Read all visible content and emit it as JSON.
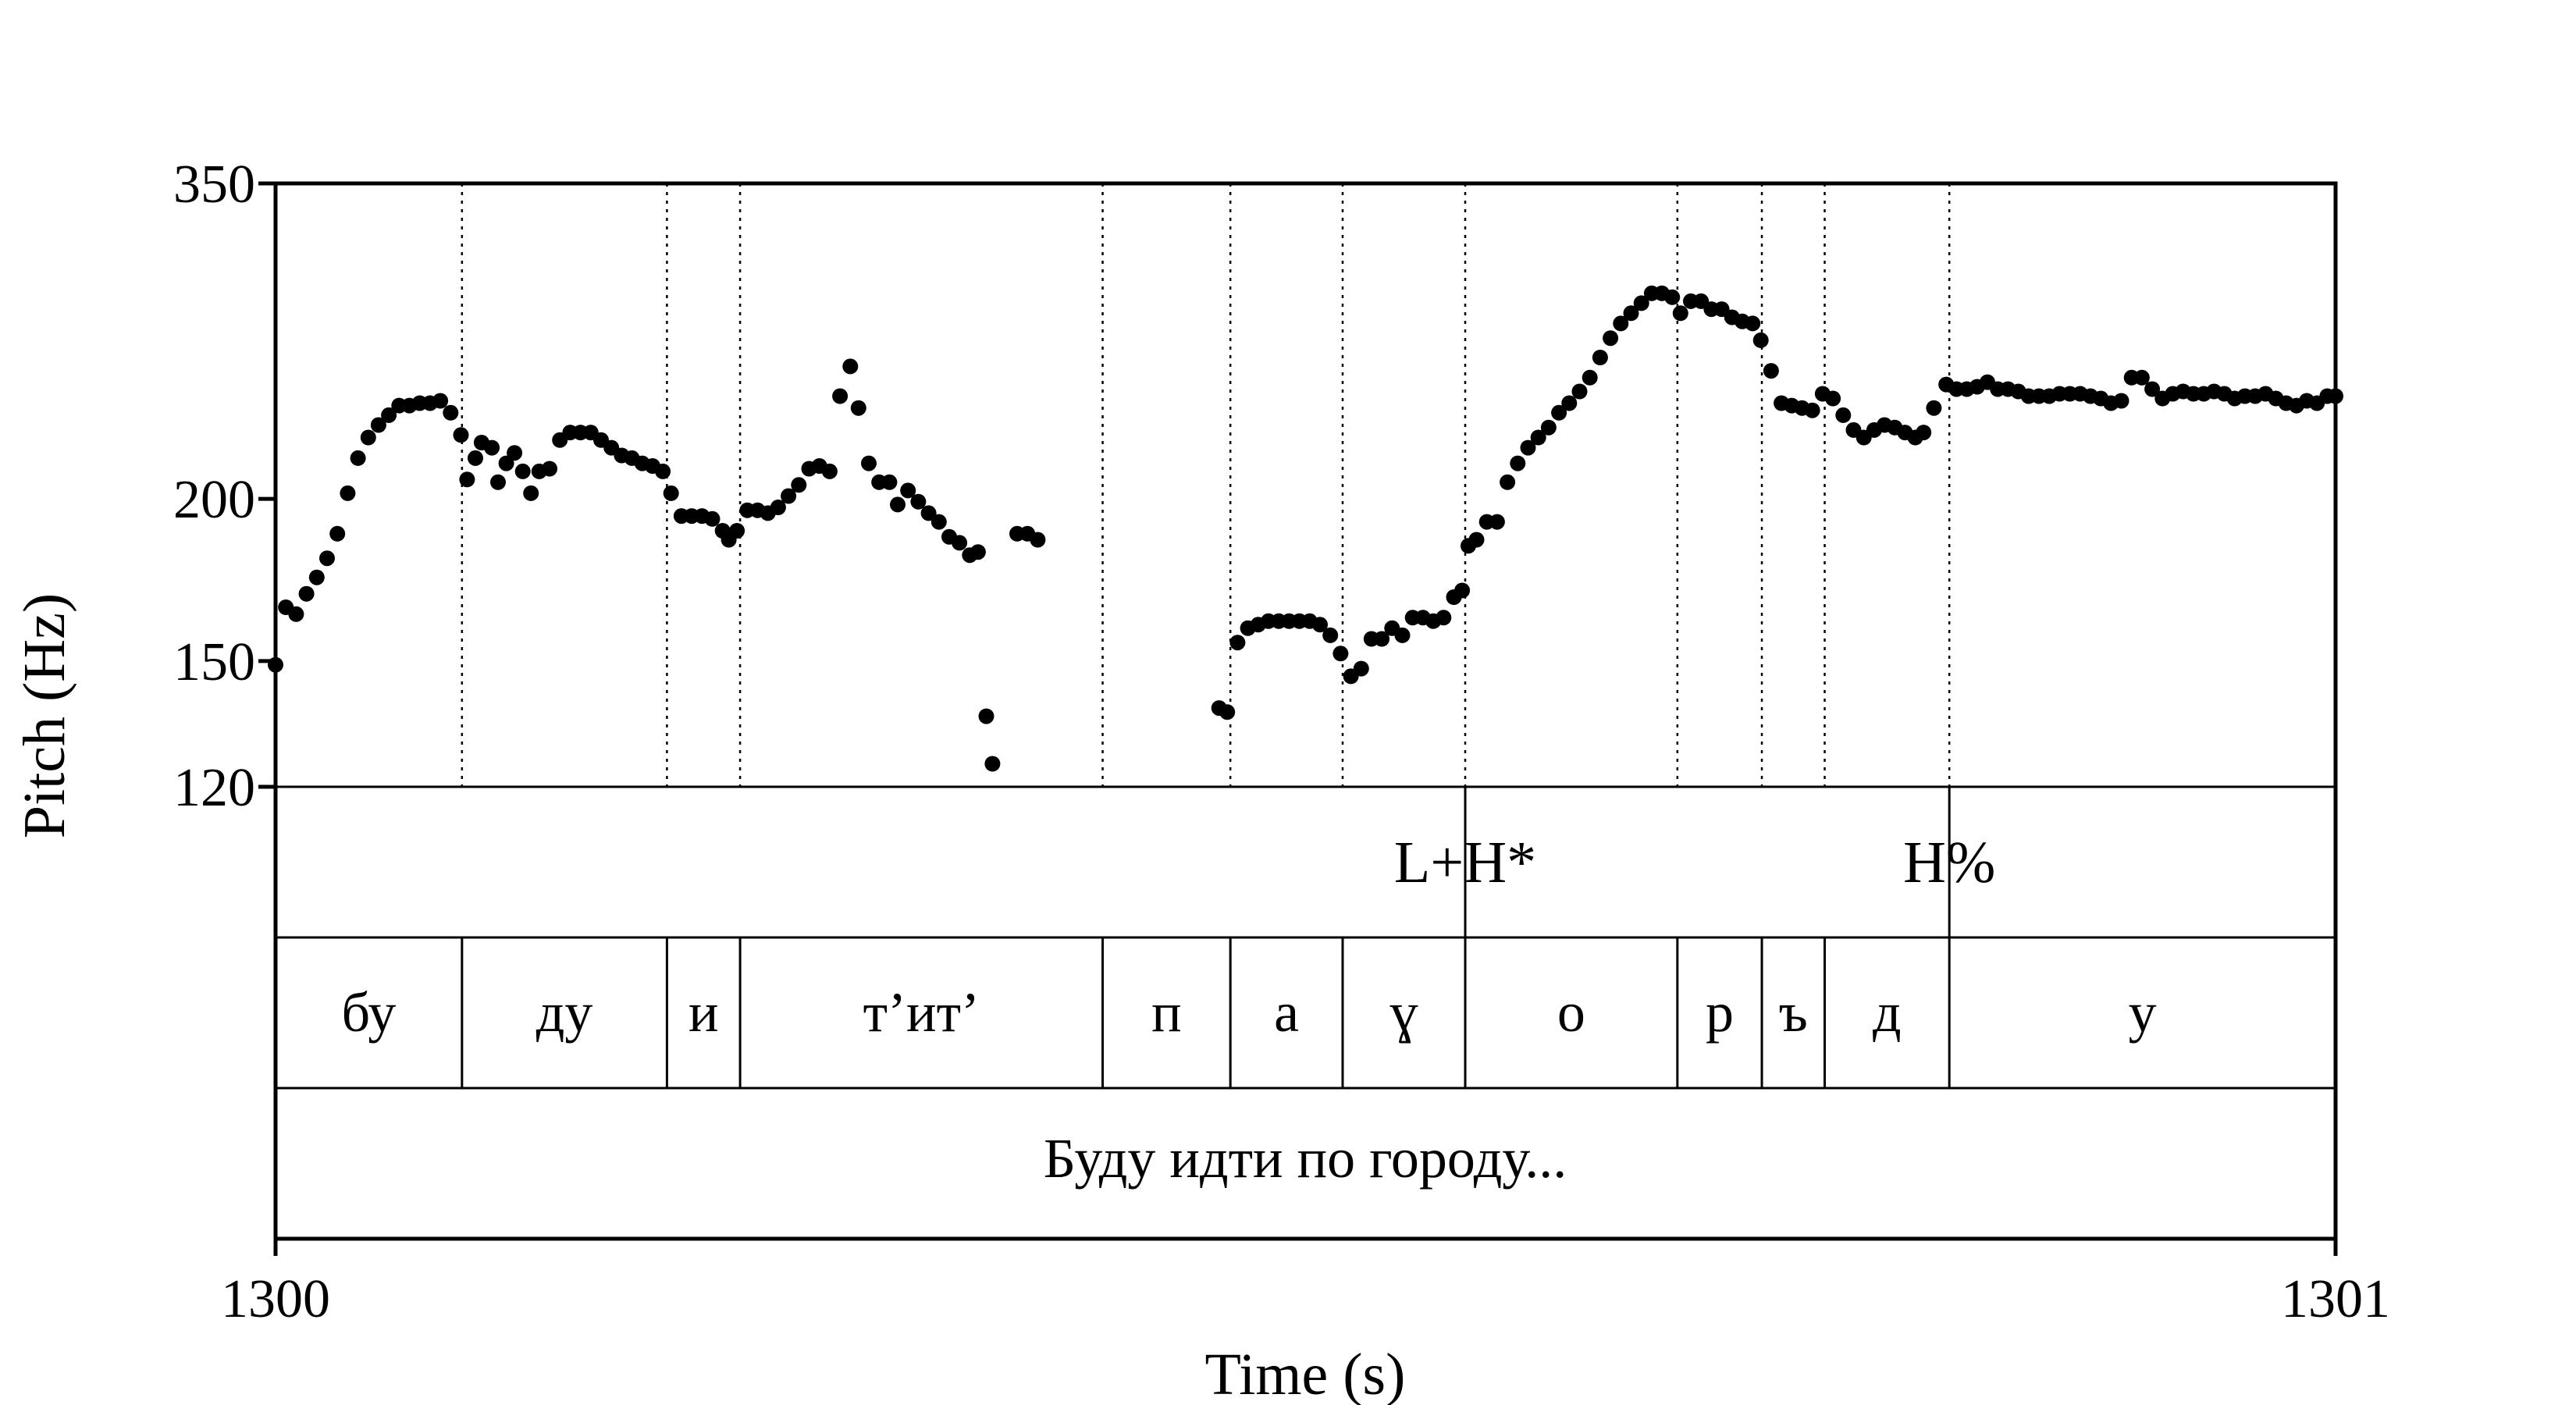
{
  "chart_data": {
    "type": "scatter",
    "xlabel": "Time (s)",
    "ylabel": "Pitch (Hz)",
    "xlim": [
      1300,
      1301
    ],
    "ylim": [
      120,
      350
    ],
    "y_scale": "log",
    "x_tick_labels": [
      "1300",
      "1301"
    ],
    "y_tick_labels": [
      "350",
      "200",
      "150",
      "120"
    ],
    "y_ticks": [
      350,
      200,
      150,
      120
    ],
    "grid": false,
    "boundaries": [
      1300.0905,
      1300.19,
      1300.2255,
      1300.4015,
      1300.4635,
      1300.518,
      1300.5775,
      1300.6805,
      1300.7215,
      1300.752,
      1300.8125
    ],
    "tone_tier": [
      {
        "label": "L+H*",
        "time": 1300.5775
      },
      {
        "label": "H%",
        "time": 1300.8125
      }
    ],
    "segments": [
      {
        "label": "бу",
        "start": 1300.0,
        "end": 1300.0905
      },
      {
        "label": "ду",
        "start": 1300.0905,
        "end": 1300.19
      },
      {
        "label": "и",
        "start": 1300.19,
        "end": 1300.2255
      },
      {
        "label": "т’ит’",
        "start": 1300.2255,
        "end": 1300.4015
      },
      {
        "label": "п",
        "start": 1300.4015,
        "end": 1300.4635
      },
      {
        "label": "а",
        "start": 1300.4635,
        "end": 1300.518
      },
      {
        "label": "ɣ",
        "start": 1300.518,
        "end": 1300.5775
      },
      {
        "label": "о",
        "start": 1300.5775,
        "end": 1300.6805
      },
      {
        "label": "р",
        "start": 1300.6805,
        "end": 1300.7215
      },
      {
        "label": "ъ",
        "start": 1300.7215,
        "end": 1300.752
      },
      {
        "label": "д",
        "start": 1300.752,
        "end": 1300.8125
      },
      {
        "label": "у",
        "start": 1300.8125,
        "end": 1301.0
      }
    ],
    "sentence": "Буду идти по городу...",
    "series": [
      {
        "points": [
          [
            1300.0,
            149
          ],
          [
            1300.005,
            165
          ],
          [
            1300.01,
            163
          ],
          [
            1300.015,
            169
          ],
          [
            1300.02,
            174
          ],
          [
            1300.025,
            180
          ],
          [
            1300.03,
            188
          ],
          [
            1300.035,
            202
          ],
          [
            1300.04,
            215
          ],
          [
            1300.045,
            223
          ],
          [
            1300.05,
            228
          ],
          [
            1300.055,
            232
          ],
          [
            1300.06,
            236
          ],
          [
            1300.065,
            236
          ],
          [
            1300.07,
            237
          ],
          [
            1300.075,
            237
          ],
          [
            1300.08,
            238
          ],
          [
            1300.085,
            233
          ],
          [
            1300.09,
            224
          ],
          [
            1300.093,
            207
          ],
          [
            1300.097,
            215
          ],
          [
            1300.1,
            221
          ],
          [
            1300.105,
            219
          ],
          [
            1300.108,
            206
          ],
          [
            1300.112,
            213
          ],
          [
            1300.116,
            217
          ],
          [
            1300.12,
            210
          ],
          [
            1300.124,
            202
          ],
          [
            1300.128,
            210
          ],
          [
            1300.133,
            211
          ],
          [
            1300.138,
            222
          ],
          [
            1300.143,
            225
          ],
          [
            1300.148,
            225
          ],
          [
            1300.153,
            225
          ],
          [
            1300.158,
            222
          ],
          [
            1300.163,
            219
          ],
          [
            1300.168,
            216
          ],
          [
            1300.173,
            215
          ],
          [
            1300.178,
            213
          ],
          [
            1300.183,
            212
          ],
          [
            1300.188,
            210
          ],
          [
            1300.192,
            202
          ],
          [
            1300.197,
            194
          ],
          [
            1300.202,
            194
          ],
          [
            1300.207,
            194
          ],
          [
            1300.212,
            193
          ],
          [
            1300.217,
            189
          ],
          [
            1300.22,
            186
          ],
          [
            1300.224,
            189
          ],
          [
            1300.229,
            196
          ],
          [
            1300.234,
            196
          ],
          [
            1300.239,
            195
          ],
          [
            1300.244,
            197
          ],
          [
            1300.249,
            201
          ],
          [
            1300.254,
            205
          ],
          [
            1300.259,
            211
          ],
          [
            1300.264,
            212
          ],
          [
            1300.269,
            210
          ],
          [
            1300.274,
            240
          ],
          [
            1300.279,
            253
          ],
          [
            1300.283,
            235
          ],
          [
            1300.288,
            213
          ],
          [
            1300.293,
            206
          ],
          [
            1300.298,
            206
          ],
          [
            1300.302,
            198
          ],
          [
            1300.307,
            203
          ],
          [
            1300.312,
            199
          ],
          [
            1300.317,
            195
          ],
          [
            1300.322,
            192
          ],
          [
            1300.327,
            187
          ],
          [
            1300.332,
            185
          ],
          [
            1300.337,
            181
          ],
          [
            1300.341,
            182
          ],
          [
            1300.345,
            136
          ],
          [
            1300.348,
            125
          ],
          [
            1300.36,
            188
          ],
          [
            1300.365,
            188
          ],
          [
            1300.37,
            186
          ],
          [
            1300.458,
            138
          ],
          [
            1300.462,
            137
          ],
          [
            1300.467,
            155
          ],
          [
            1300.472,
            159
          ],
          [
            1300.477,
            160
          ],
          [
            1300.482,
            161
          ],
          [
            1300.487,
            161
          ],
          [
            1300.492,
            161
          ],
          [
            1300.497,
            161
          ],
          [
            1300.502,
            161
          ],
          [
            1300.507,
            160
          ],
          [
            1300.512,
            157
          ],
          [
            1300.517,
            152
          ],
          [
            1300.522,
            146
          ],
          [
            1300.527,
            148
          ],
          [
            1300.532,
            156
          ],
          [
            1300.537,
            156
          ],
          [
            1300.542,
            159
          ],
          [
            1300.547,
            157
          ],
          [
            1300.552,
            162
          ],
          [
            1300.557,
            162
          ],
          [
            1300.562,
            161
          ],
          [
            1300.567,
            162
          ],
          [
            1300.572,
            168
          ],
          [
            1300.576,
            170
          ],
          [
            1300.579,
            184
          ],
          [
            1300.583,
            186
          ],
          [
            1300.588,
            192
          ],
          [
            1300.593,
            192
          ],
          [
            1300.598,
            206
          ],
          [
            1300.603,
            213
          ],
          [
            1300.608,
            219
          ],
          [
            1300.613,
            223
          ],
          [
            1300.618,
            227
          ],
          [
            1300.623,
            233
          ],
          [
            1300.628,
            237
          ],
          [
            1300.633,
            242
          ],
          [
            1300.638,
            248
          ],
          [
            1300.643,
            257
          ],
          [
            1300.648,
            266
          ],
          [
            1300.653,
            273
          ],
          [
            1300.658,
            278
          ],
          [
            1300.663,
            283
          ],
          [
            1300.668,
            288
          ],
          [
            1300.673,
            288
          ],
          [
            1300.678,
            286
          ],
          [
            1300.682,
            278
          ],
          [
            1300.687,
            284
          ],
          [
            1300.692,
            284
          ],
          [
            1300.697,
            280
          ],
          [
            1300.702,
            280
          ],
          [
            1300.707,
            276
          ],
          [
            1300.712,
            274
          ],
          [
            1300.717,
            273
          ],
          [
            1300.721,
            265
          ],
          [
            1300.726,
            251
          ],
          [
            1300.731,
            237
          ],
          [
            1300.736,
            236
          ],
          [
            1300.741,
            235
          ],
          [
            1300.746,
            234
          ],
          [
            1300.751,
            241
          ],
          [
            1300.756,
            239
          ],
          [
            1300.761,
            232
          ],
          [
            1300.766,
            226
          ],
          [
            1300.771,
            223
          ],
          [
            1300.776,
            226
          ],
          [
            1300.781,
            228
          ],
          [
            1300.786,
            227
          ],
          [
            1300.791,
            225
          ],
          [
            1300.796,
            223
          ],
          [
            1300.8,
            225
          ],
          [
            1300.805,
            235
          ],
          [
            1300.811,
            245
          ],
          [
            1300.816,
            243
          ],
          [
            1300.821,
            243
          ],
          [
            1300.826,
            244
          ],
          [
            1300.831,
            246
          ],
          [
            1300.836,
            243
          ],
          [
            1300.841,
            243
          ],
          [
            1300.846,
            242
          ],
          [
            1300.851,
            240
          ],
          [
            1300.856,
            240
          ],
          [
            1300.861,
            240
          ],
          [
            1300.866,
            241
          ],
          [
            1300.871,
            241
          ],
          [
            1300.876,
            241
          ],
          [
            1300.881,
            240
          ],
          [
            1300.886,
            239
          ],
          [
            1300.891,
            237
          ],
          [
            1300.896,
            238
          ],
          [
            1300.901,
            248
          ],
          [
            1300.906,
            248
          ],
          [
            1300.911,
            243
          ],
          [
            1300.916,
            239
          ],
          [
            1300.921,
            241
          ],
          [
            1300.926,
            242
          ],
          [
            1300.931,
            241
          ],
          [
            1300.936,
            241
          ],
          [
            1300.941,
            242
          ],
          [
            1300.946,
            241
          ],
          [
            1300.951,
            239
          ],
          [
            1300.956,
            240
          ],
          [
            1300.961,
            240
          ],
          [
            1300.966,
            241
          ],
          [
            1300.971,
            239
          ],
          [
            1300.976,
            237
          ],
          [
            1300.981,
            236
          ],
          [
            1300.986,
            238
          ],
          [
            1300.991,
            237
          ],
          [
            1300.996,
            240
          ],
          [
            1301.0,
            240
          ]
        ]
      }
    ]
  }
}
